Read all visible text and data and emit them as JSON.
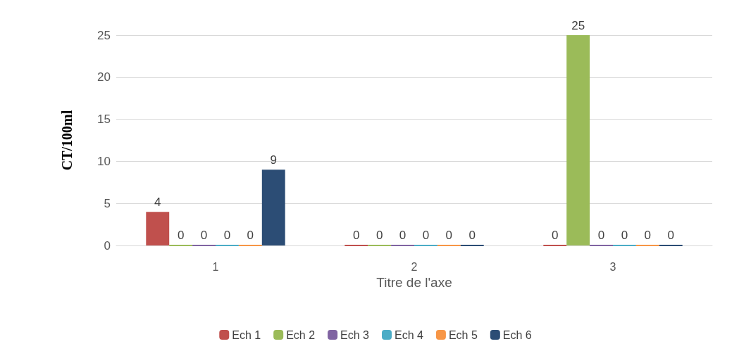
{
  "chart_data": {
    "type": "bar",
    "xlabel": "Titre de l'axe",
    "ylabel": "CT/100ml",
    "categories": [
      "1",
      "2",
      "3"
    ],
    "series": [
      {
        "name": "Ech 1",
        "color": "#c0504d",
        "values": [
          4,
          0,
          0
        ]
      },
      {
        "name": "Ech 2",
        "color": "#9bbb59",
        "values": [
          0,
          0,
          25
        ]
      },
      {
        "name": "Ech 3",
        "color": "#8064a2",
        "values": [
          0,
          0,
          0
        ]
      },
      {
        "name": "Ech 4",
        "color": "#4bacc6",
        "values": [
          0,
          0,
          0
        ]
      },
      {
        "name": "Ech 5",
        "color": "#f79646",
        "values": [
          0,
          0,
          0
        ]
      },
      {
        "name": "Ech 6",
        "color": "#2c4d75",
        "values": [
          9,
          0,
          0
        ]
      }
    ],
    "ylim": [
      0,
      25
    ],
    "yticks": [
      0,
      5,
      10,
      15,
      20,
      25
    ],
    "grid": "y",
    "legend": "bottom",
    "data_labels": true
  }
}
